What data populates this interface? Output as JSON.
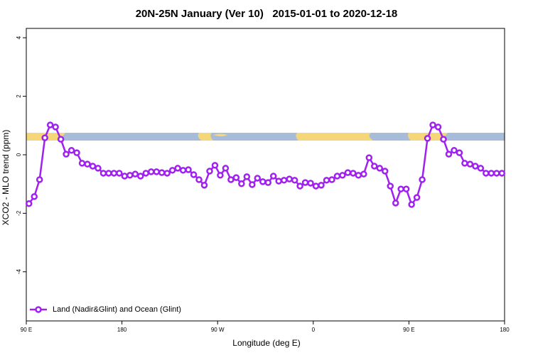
{
  "chart_data": {
    "type": "line",
    "title": "20N-25N January (Ver 10)   2015-01-01 to 2020-12-18",
    "xlabel": "Longitude (deg E)",
    "ylabel": "XCO2 - MLO trend (ppm)",
    "xlim": [
      90,
      540
    ],
    "ylim": [
      -5.68,
      4.32
    ],
    "xticks": [
      {
        "value": 90,
        "label": "90 E"
      },
      180,
      {
        "value": 270,
        "label": "90 W"
      },
      {
        "value": 360,
        "label": "0"
      },
      {
        "value": 450,
        "label": "90 E"
      },
      {
        "value": 540,
        "label": "180"
      }
    ],
    "yticks": [
      -4,
      -2,
      0,
      2,
      4
    ],
    "grid": false,
    "legend": "bottom-left",
    "x": [
      92.5,
      97.5,
      102.5,
      107.5,
      112.5,
      117.5,
      122.5,
      127.5,
      132.5,
      137.5,
      142.5,
      147.5,
      152.5,
      157.5,
      162.5,
      167.5,
      172.5,
      177.5,
      182.5,
      187.5,
      192.5,
      197.5,
      202.5,
      207.5,
      212.5,
      217.5,
      222.5,
      227.5,
      232.5,
      237.5,
      242.5,
      247.5,
      252.5,
      257.5,
      262.5,
      267.5,
      272.5,
      277.5,
      282.5,
      287.5,
      292.5,
      297.5,
      302.5,
      307.5,
      312.5,
      317.5,
      322.5,
      327.5,
      332.5,
      337.5,
      342.5,
      347.5,
      352.5,
      357.5,
      362.5,
      367.5,
      372.5,
      377.5,
      382.5,
      387.5,
      392.5,
      397.5,
      402.5,
      407.5,
      412.5,
      417.5,
      422.5,
      427.5,
      432.5,
      437.5,
      442.5,
      447.5,
      452.5,
      457.5,
      462.5,
      467.5,
      472.5,
      477.5,
      482.5,
      487.5,
      492.5,
      497.5,
      502.5,
      507.5,
      512.5,
      517.5,
      522.5,
      527.5,
      532.5,
      537.5
    ],
    "series": [
      {
        "name": "Land (Nadir&Glint) and Ocean (Glint)",
        "color": "#a020f0",
        "values": [
          -1.67,
          -1.43,
          -0.85,
          0.58,
          1.02,
          0.95,
          0.53,
          0.02,
          0.15,
          0.07,
          -0.29,
          -0.32,
          -0.39,
          -0.46,
          -0.63,
          -0.63,
          -0.63,
          -0.63,
          -0.73,
          -0.7,
          -0.66,
          -0.73,
          -0.63,
          -0.58,
          -0.58,
          -0.61,
          -0.63,
          -0.53,
          -0.46,
          -0.53,
          -0.51,
          -0.68,
          -0.85,
          -1.04,
          -0.56,
          -0.36,
          -0.7,
          -0.46,
          -0.85,
          -0.78,
          -0.99,
          -0.75,
          -1.02,
          -0.8,
          -0.92,
          -0.95,
          -0.73,
          -0.9,
          -0.87,
          -0.83,
          -0.87,
          -1.07,
          -0.95,
          -0.97,
          -1.07,
          -1.04,
          -0.87,
          -0.85,
          -0.73,
          -0.7,
          -0.61,
          -0.63,
          -0.7,
          -0.66,
          -0.1,
          -0.39,
          -0.46,
          -0.56,
          -1.07,
          -1.65,
          -1.17,
          -1.17,
          -1.7,
          -1.46,
          -0.85,
          0.56,
          1.02,
          0.95,
          0.53,
          0.02,
          0.15,
          0.07,
          -0.29,
          -0.32,
          -0.39,
          -0.46,
          -0.63,
          -0.63,
          -0.63,
          -0.63
        ]
      }
    ]
  }
}
